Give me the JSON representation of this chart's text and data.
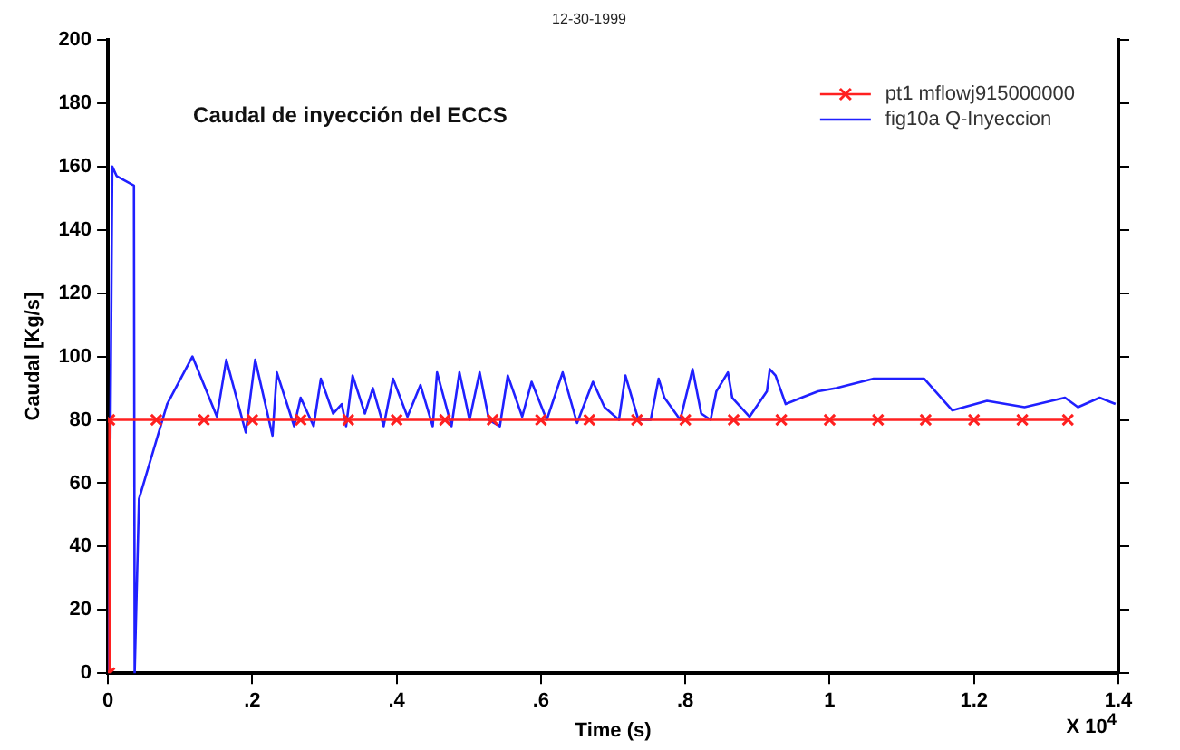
{
  "chart_data": {
    "type": "line",
    "title": "Caudal de inyección del ECCS",
    "xlabel": "Time (s)",
    "ylabel": "Caudal [Kg/s]",
    "annotations": [
      "12-30-1999",
      "X 10$^{4}$"
    ],
    "xlim": [
      0,
      1.4
    ],
    "xticks": [
      0,
      {
        "value": 0.2,
        "label": ".2"
      },
      {
        "value": 0.4,
        "label": ".4"
      },
      {
        "value": 0.6,
        "label": ".6"
      },
      {
        "value": 0.8,
        "label": ".8"
      },
      1,
      1.2,
      1.4
    ],
    "ylim": [
      0,
      200
    ],
    "yticks": [
      0,
      20,
      40,
      60,
      80,
      100,
      120,
      140,
      160,
      180,
      200
    ],
    "grid": false,
    "legend": "top right",
    "line_style": "solid",
    "series": [
      {
        "name": "pt1 mflowj915000000",
        "color": "#ff2020",
        "marker": "cross",
        "x": [
          0.002,
          0.002,
          0.067,
          0.133,
          0.2,
          0.267,
          0.333,
          0.4,
          0.467,
          0.533,
          0.6,
          0.667,
          0.733,
          0.8,
          0.867,
          0.933,
          1.0,
          1.067,
          1.133,
          1.2,
          1.267,
          1.33
        ],
        "values": [
          0,
          80,
          80,
          80,
          80,
          80,
          80,
          80,
          80,
          80,
          80,
          80,
          80,
          80,
          80,
          80,
          80,
          80,
          80,
          80,
          80,
          80
        ]
      },
      {
        "name": "fig10a Q-Inyeccion",
        "color": "#2020ff",
        "marker": "none",
        "x": [
          0.001,
          0.006,
          0.012,
          0.036,
          0.037,
          0.043,
          0.082,
          0.117,
          0.151,
          0.164,
          0.191,
          0.204,
          0.228,
          0.234,
          0.258,
          0.267,
          0.285,
          0.295,
          0.312,
          0.324,
          0.33,
          0.339,
          0.356,
          0.367,
          0.382,
          0.395,
          0.415,
          0.433,
          0.45,
          0.456,
          0.476,
          0.487,
          0.501,
          0.515,
          0.528,
          0.543,
          0.554,
          0.574,
          0.587,
          0.608,
          0.63,
          0.65,
          0.672,
          0.688,
          0.708,
          0.717,
          0.735,
          0.752,
          0.763,
          0.771,
          0.793,
          0.81,
          0.822,
          0.835,
          0.843,
          0.859,
          0.865,
          0.889,
          0.913,
          0.917,
          0.925,
          0.939,
          0.961,
          0.984,
          1.009,
          1.061,
          1.131,
          1.17,
          1.218,
          1.27,
          1.326,
          1.344,
          1.374,
          1.396
        ],
        "values": [
          0,
          160,
          157,
          154,
          0,
          55,
          85,
          100,
          81,
          99,
          76,
          99,
          75,
          95,
          78,
          87,
          78,
          93,
          82,
          85,
          78,
          94,
          82,
          90,
          78,
          93,
          81,
          91,
          78,
          95,
          78,
          95,
          80,
          95,
          80,
          78,
          94,
          81,
          92,
          80,
          95,
          79,
          92,
          84,
          80,
          94,
          80,
          80,
          93,
          87,
          80,
          96,
          82,
          80,
          89,
          95,
          87,
          81,
          89,
          96,
          94,
          85,
          87,
          89,
          90,
          93,
          93,
          83,
          86,
          84,
          87,
          84,
          87,
          85
        ]
      }
    ]
  }
}
